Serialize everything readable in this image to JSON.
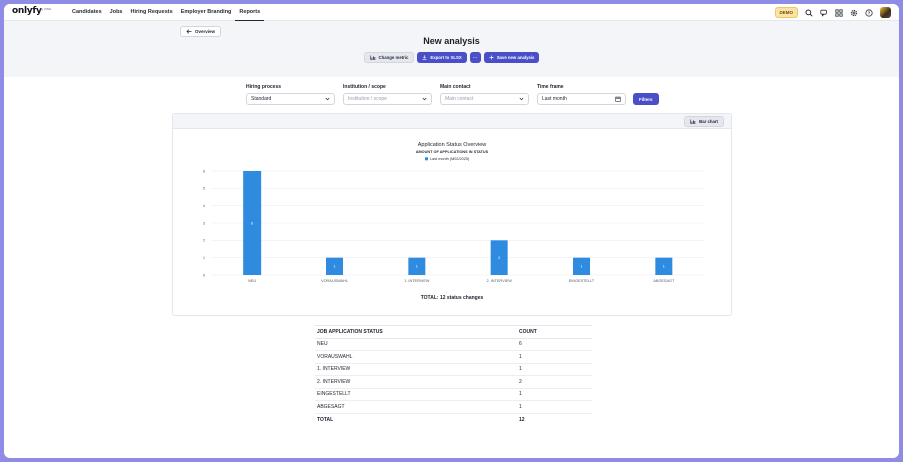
{
  "nav": {
    "logo": "onlyfy",
    "logo_sub": "by XING",
    "items": [
      {
        "label": "Candidates"
      },
      {
        "label": "Jobs"
      },
      {
        "label": "Hiring Requests"
      },
      {
        "label": "Employer Branding"
      },
      {
        "label": "Reports",
        "active": true
      }
    ],
    "demo_badge": "DEMO",
    "tools": [
      "search-icon",
      "chat-icon",
      "apps-icon",
      "gear-icon",
      "help-icon"
    ]
  },
  "header": {
    "back_label": "Overview",
    "title": "New analysis",
    "actions": {
      "change_metric": "Change metric",
      "export": "Export to XLSX",
      "more": "···",
      "save": "Save new analysis"
    }
  },
  "filters": {
    "hiring_process": {
      "label": "Hiring process",
      "value": "Standard"
    },
    "institution": {
      "label": "Institution / scope",
      "placeholder": "Institution / scope"
    },
    "main_contact": {
      "label": "Main contact",
      "placeholder": "Main contact"
    },
    "time_frame": {
      "label": "Time frame",
      "value": "Last month"
    },
    "apply_label": "Filters"
  },
  "chart_toolbar": {
    "chart_type": "Bar chart"
  },
  "chart_data": {
    "type": "bar",
    "title": "Application Status Overview",
    "subtitle": "AMOUNT OF APPLICATIONS IN STATUS",
    "legend": "Last month (M02/2025)",
    "categories": [
      "NEU",
      "VORAUSWAHL",
      "1. INTERVIEW",
      "2. INTERVIEW",
      "EINGESTELLT",
      "ABGESAGT"
    ],
    "values": [
      6,
      1,
      1,
      2,
      1,
      1
    ],
    "yticks": [
      0,
      1,
      2,
      3,
      4,
      5,
      6
    ],
    "ylim": [
      0,
      6
    ],
    "total_label": "TOTAL: 12 status changes",
    "bar_color": "#2f8be0"
  },
  "table": {
    "headers": [
      "JOB APPLICATION STATUS",
      "COUNT"
    ],
    "rows": [
      {
        "status": "NEU",
        "count": "6"
      },
      {
        "status": "VORAUSWAHL",
        "count": "1"
      },
      {
        "status": "1. INTERVIEW",
        "count": "1"
      },
      {
        "status": "2. INTERVIEW",
        "count": "2"
      },
      {
        "status": "EINGESTELLT",
        "count": "1"
      },
      {
        "status": "ABGESAGT",
        "count": "1"
      }
    ],
    "total": {
      "label": "TOTAL",
      "count": "12"
    }
  }
}
